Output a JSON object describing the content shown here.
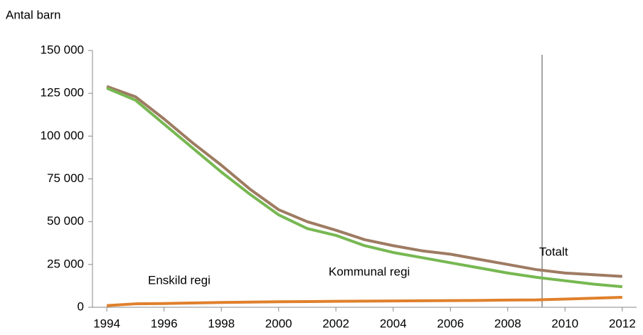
{
  "chart_data": {
    "type": "line",
    "y_label": "Antal barn",
    "x": [
      1994,
      1995,
      1996,
      1997,
      1998,
      1999,
      2000,
      2001,
      2002,
      2003,
      2004,
      2005,
      2006,
      2007,
      2008,
      2009,
      2010,
      2011,
      2012
    ],
    "series": [
      {
        "name": "Totalt",
        "color": "#9e7b62",
        "values": [
          129000,
          123000,
          110000,
          96000,
          83000,
          69000,
          57000,
          50000,
          45000,
          39500,
          36000,
          33000,
          31000,
          28000,
          25000,
          22000,
          20000,
          19000,
          18000
        ]
      },
      {
        "name": "Kommunal regi",
        "color": "#77b852",
        "values": [
          128000,
          121000,
          107000,
          93000,
          79000,
          66000,
          54000,
          46000,
          42000,
          36000,
          32000,
          29000,
          26000,
          23000,
          20000,
          17500,
          15500,
          13500,
          12000
        ]
      },
      {
        "name": "Enskild regi",
        "color": "#e0802c",
        "values": [
          1000,
          2000,
          2200,
          2500,
          2800,
          3000,
          3200,
          3300,
          3500,
          3600,
          3700,
          3800,
          3900,
          4000,
          4200,
          4300,
          4800,
          5300,
          5800
        ]
      }
    ],
    "reference_x": 2009.2,
    "xlim": [
      1993.5,
      2012.5
    ],
    "xticks": [
      1994,
      1996,
      1998,
      2000,
      2002,
      2004,
      2006,
      2008,
      2010,
      2012
    ],
    "ylim": [
      0,
      150000
    ],
    "yticks": [
      0,
      {
        "value": 25000,
        "label": "25 000"
      },
      {
        "value": 50000,
        "label": "50 000"
      },
      {
        "value": 75000,
        "label": "75 000"
      },
      {
        "value": 100000,
        "label": "100 000"
      },
      {
        "value": 125000,
        "label": "125 000"
      },
      {
        "value": 150000,
        "label": "150 000"
      }
    ],
    "grid": false
  }
}
